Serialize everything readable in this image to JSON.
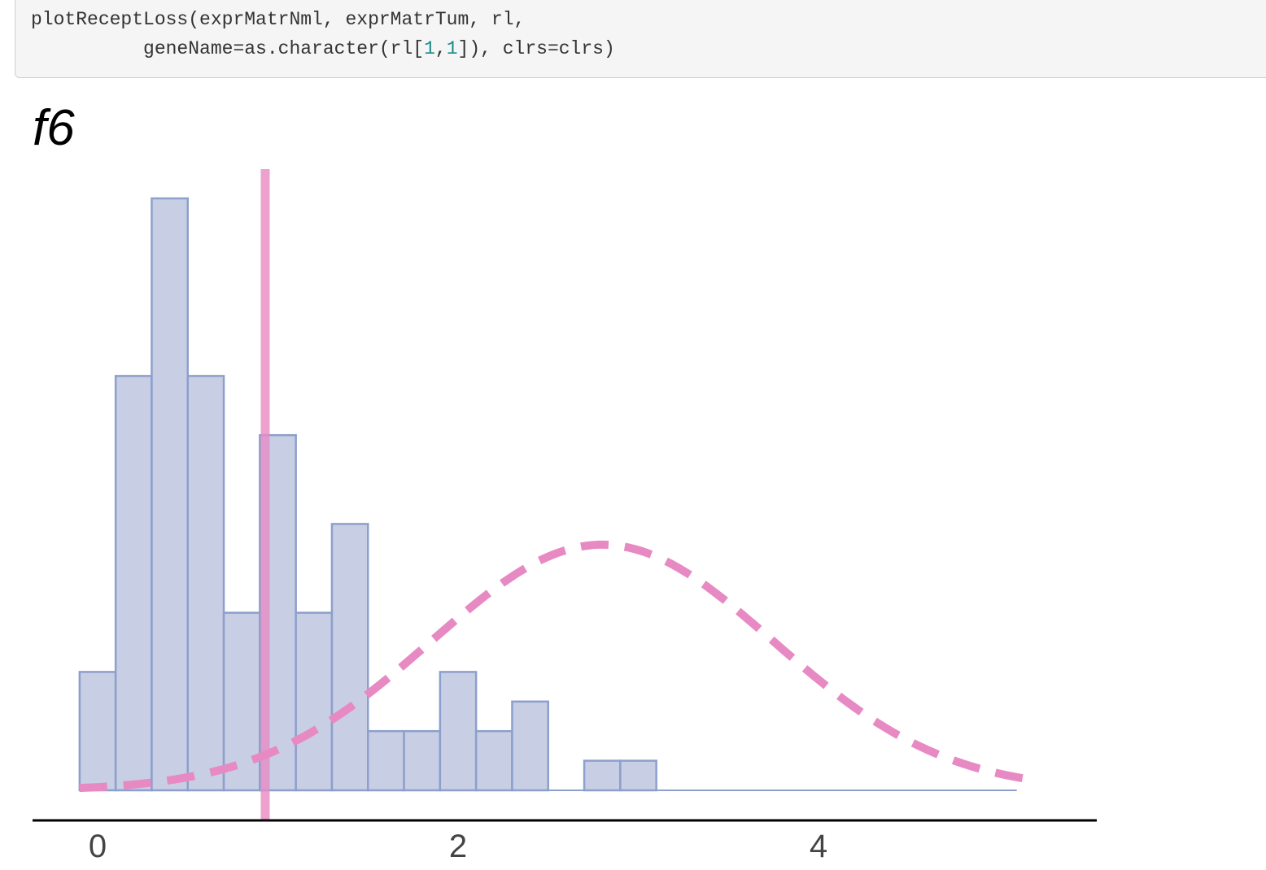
{
  "code": {
    "line1_prefix": "plotReceptLoss(exprMatrNml, exprMatrTum, rl,",
    "line2_prefix": "          geneName=as.character(rl[",
    "line2_num1": "1",
    "line2_comma": ",",
    "line2_num2": "1",
    "line2_suffix": "]), clrs=clrs)"
  },
  "chart_data": {
    "type": "bar",
    "title": "f6",
    "xlabel": "",
    "ylabel": "",
    "xlim": [
      -0.18,
      5.6
    ],
    "ylim": [
      0,
      20.5
    ],
    "x_ticks": [
      0,
      2,
      4
    ],
    "x_tick_labels": [
      "0",
      "2",
      "4"
    ],
    "bin_width": 0.2,
    "bins": [
      {
        "start": -0.1,
        "count": 4
      },
      {
        "start": 0.1,
        "count": 14
      },
      {
        "start": 0.3,
        "count": 20
      },
      {
        "start": 0.5,
        "count": 14
      },
      {
        "start": 0.7,
        "count": 6
      },
      {
        "start": 0.9,
        "count": 12
      },
      {
        "start": 1.1,
        "count": 6
      },
      {
        "start": 1.3,
        "count": 9
      },
      {
        "start": 1.5,
        "count": 2
      },
      {
        "start": 1.7,
        "count": 2
      },
      {
        "start": 1.9,
        "count": 4
      },
      {
        "start": 2.1,
        "count": 2
      },
      {
        "start": 2.3,
        "count": 3
      },
      {
        "start": 2.5,
        "count": 0
      },
      {
        "start": 2.7,
        "count": 1
      },
      {
        "start": 2.9,
        "count": 1
      }
    ],
    "baseline_x_end": 5.1,
    "threshold_x": 0.93,
    "normal_curve": {
      "mean": 2.8,
      "sd": 0.95,
      "peak": 8.3,
      "x_start": -0.1,
      "x_end": 5.2
    },
    "colors": {
      "bar_fill": "#c8cfe4",
      "bar_stroke": "#8d9fcb",
      "threshold_line": "#e78ac3",
      "curve": "#e78ac3",
      "axis": "#000000"
    }
  }
}
